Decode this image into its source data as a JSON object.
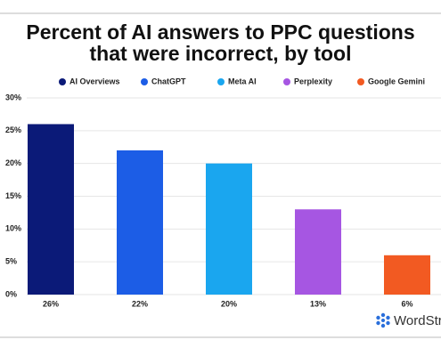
{
  "chart_data": {
    "type": "bar",
    "title": "Percent of AI answers to PPC questions that were incorrect, by tool",
    "categories": [
      "AI Overviews",
      "ChatGPT",
      "Meta AI",
      "Perplexity",
      "Google Gemini"
    ],
    "values": [
      26,
      22,
      20,
      13,
      6
    ],
    "value_labels": [
      "26%",
      "22%",
      "20%",
      "13%",
      "6%"
    ],
    "colors": [
      "#0b1a78",
      "#1c5de6",
      "#1aa6ef",
      "#a656e2",
      "#f25a22"
    ],
    "ylim": [
      0,
      30
    ],
    "yticks": [
      {
        "value": 0,
        "label": "0%"
      },
      {
        "value": 5,
        "label": "5%"
      },
      {
        "value": 10,
        "label": "10%"
      },
      {
        "value": 15,
        "label": "15%"
      },
      {
        "value": 20,
        "label": "20%"
      },
      {
        "value": 25,
        "label": "25%"
      },
      {
        "value": 30,
        "label": "30%"
      }
    ],
    "grid": true,
    "logo_text": "WordStre"
  }
}
